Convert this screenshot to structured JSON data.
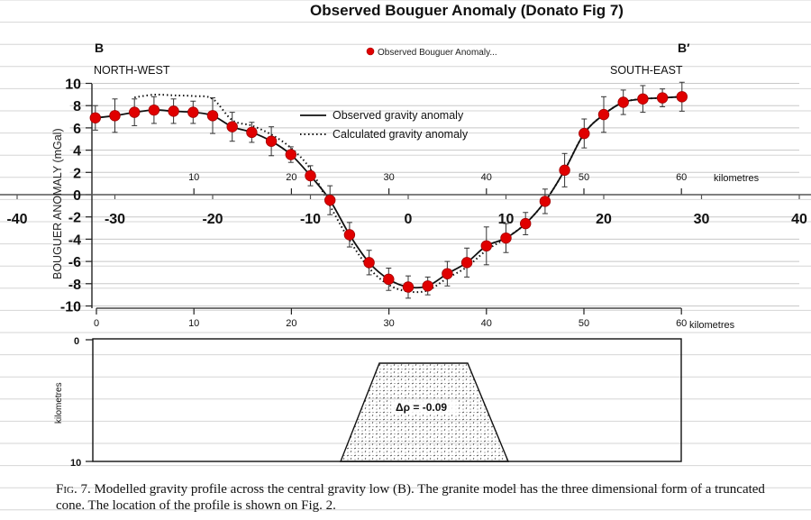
{
  "chart_data": {
    "type": "scatter",
    "title": "Observed Bouguer Anomaly (Donato Fig 7)",
    "legend": {
      "label": "Observed Bouguer Anomaly...",
      "position": "top-center",
      "color": "#e00000"
    },
    "xlim": [
      -40,
      40
    ],
    "ylim": [
      -10,
      10
    ],
    "x_ticks": [
      -40,
      -30,
      -20,
      -10,
      0,
      10,
      20,
      30,
      40
    ],
    "x_tick_labels": [
      "-40",
      "-30",
      "-20",
      "-10",
      "0",
      "10",
      "20",
      "30",
      "40"
    ],
    "y_ticks": [
      -10,
      -8,
      -6,
      -4,
      -2,
      0,
      2,
      4,
      6,
      8,
      10
    ],
    "y_tick_labels": [
      "-10",
      "-8",
      "-6",
      "-4",
      "-2",
      "0",
      "2",
      "4",
      "6",
      "8",
      "10"
    ],
    "grid": "horizontal",
    "series": [
      {
        "name": "Observed Bouguer Anomaly...",
        "color": "#e00000",
        "points": [
          {
            "x": -32,
            "y": 6.9,
            "err": 1.1
          },
          {
            "x": -30,
            "y": 7.1,
            "err": 1.5
          },
          {
            "x": -28,
            "y": 7.4,
            "err": 1.2
          },
          {
            "x": -26,
            "y": 7.6,
            "err": 1.2
          },
          {
            "x": -24,
            "y": 7.5,
            "err": 1.1
          },
          {
            "x": -22,
            "y": 7.4,
            "err": 1.0
          },
          {
            "x": -20,
            "y": 7.1,
            "err": 1.6
          },
          {
            "x": -18,
            "y": 6.1,
            "err": 1.3
          },
          {
            "x": -16,
            "y": 5.6,
            "err": 0.9
          },
          {
            "x": -14,
            "y": 4.8,
            "err": 1.3
          },
          {
            "x": -12,
            "y": 3.6,
            "err": 0.7
          },
          {
            "x": -10,
            "y": 1.7,
            "err": 0.9
          },
          {
            "x": -8,
            "y": -0.5,
            "err": 1.3
          },
          {
            "x": -6,
            "y": -3.6,
            "err": 1.1
          },
          {
            "x": -4,
            "y": -6.1,
            "err": 1.1
          },
          {
            "x": -2,
            "y": -7.6,
            "err": 1.0
          },
          {
            "x": 0,
            "y": -8.3,
            "err": 1.0
          },
          {
            "x": 2,
            "y": -8.2,
            "err": 0.8
          },
          {
            "x": 4,
            "y": -7.1,
            "err": 1.1
          },
          {
            "x": 6,
            "y": -6.1,
            "err": 1.3
          },
          {
            "x": 8,
            "y": -4.6,
            "err": 1.7
          },
          {
            "x": 10,
            "y": -3.9,
            "err": 1.3
          },
          {
            "x": 12,
            "y": -2.6,
            "err": 1.0
          },
          {
            "x": 14,
            "y": -0.6,
            "err": 1.1
          },
          {
            "x": 16,
            "y": 2.2,
            "err": 1.5
          },
          {
            "x": 18,
            "y": 5.5,
            "err": 1.3
          },
          {
            "x": 20,
            "y": 7.2,
            "err": 1.6
          },
          {
            "x": 22,
            "y": 8.3,
            "err": 1.1
          },
          {
            "x": 24,
            "y": 8.6,
            "err": 1.2
          },
          {
            "x": 26,
            "y": 8.7,
            "err": 0.8
          },
          {
            "x": 28,
            "y": 8.8,
            "err": 1.3
          }
        ]
      }
    ]
  },
  "figure": {
    "profile_start": "B",
    "profile_end": "B′",
    "direction_left": "NORTH-WEST",
    "direction_right": "SOUTH-EAST",
    "y_axis_label": "BOUGUER ANOMALY (mGal)",
    "legend_observed": "Observed gravity anomaly",
    "legend_calculated": "Calculated gravity anomaly",
    "km_unit": "kilometres",
    "km_unit_lower": "kilometres",
    "km_ticks_upper": [
      "10",
      "20",
      "30",
      "40",
      "50",
      "60"
    ],
    "km_ticks_lower": [
      "0",
      "10",
      "20",
      "30",
      "40",
      "50",
      "60"
    ],
    "depth_axis_label": "kilometres",
    "depth_ticks": [
      "0",
      "10"
    ],
    "density_label": "Δρ = -0.09",
    "underlay_y_ticks": [
      "10",
      "8",
      "6",
      "4",
      "2",
      "0",
      "2",
      "4",
      "6",
      "8",
      "10"
    ]
  },
  "caption": {
    "fig_label": "Fig. 7.",
    "text": " Modelled gravity profile across the central gravity low (B). The granite model has the three dimensional form of a truncated cone. The location of the profile is shown on Fig. 2."
  }
}
